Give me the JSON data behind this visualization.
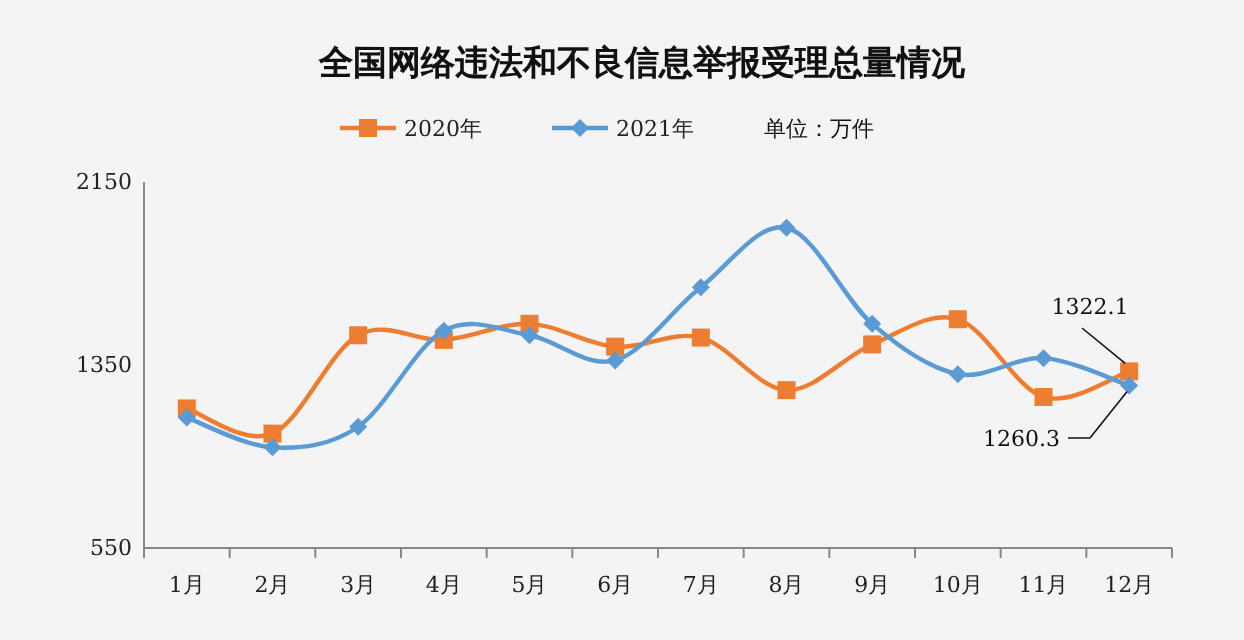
{
  "chart_data": {
    "type": "line",
    "title": "全国网络违法和不良信息举报受理总量情况",
    "categories": [
      "1月",
      "2月",
      "3月",
      "4月",
      "5月",
      "6月",
      "7月",
      "8月",
      "9月",
      "10月",
      "11月",
      "12月"
    ],
    "series": [
      {
        "name": "2020年",
        "color": "#ed7d31",
        "marker": "square",
        "values": [
          1160,
          1050,
          1480,
          1460,
          1530,
          1430,
          1470,
          1240,
          1440,
          1550,
          1210,
          1322.1
        ]
      },
      {
        "name": "2021年",
        "color": "#5b9bd5",
        "marker": "diamond",
        "values": [
          1120,
          990,
          1080,
          1500,
          1480,
          1370,
          1690,
          1950,
          1530,
          1310,
          1380,
          1260.3
        ]
      }
    ],
    "ylim": [
      550,
      2150
    ],
    "yticks": [
      550,
      1350,
      2150
    ],
    "grid": false,
    "legend": "top",
    "annotations": [
      "单位：万件",
      {
        "text": "1322.1",
        "x": "12月",
        "y": 1322.1
      },
      {
        "text": "1260.3",
        "x": "12月",
        "y": 1260.3
      }
    ]
  }
}
